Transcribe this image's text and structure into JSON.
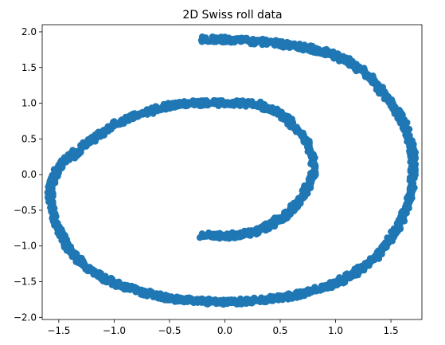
{
  "chart_data": {
    "type": "scatter",
    "title": "2D Swiss roll data",
    "xlabel": "",
    "ylabel": "",
    "xlim": [
      -1.65,
      1.78
    ],
    "ylim": [
      -2.03,
      2.1
    ],
    "xticks": [
      -1.5,
      -1.0,
      -0.5,
      0.0,
      0.5,
      1.0,
      1.5
    ],
    "xtick_labels": [
      "−1.5",
      "−1.0",
      "−0.5",
      "0.0",
      "0.5",
      "1.0",
      "1.5"
    ],
    "yticks": [
      -2.0,
      -1.5,
      -1.0,
      -0.5,
      0.0,
      0.5,
      1.0,
      1.5,
      2.0
    ],
    "ytick_labels": [
      "−2.0",
      "−1.5",
      "−1.0",
      "−0.5",
      "0.0",
      "0.5",
      "1.0",
      "1.5",
      "2.0"
    ],
    "grid": false,
    "legend": "none",
    "marker_color": "#1f77b4",
    "series": [
      {
        "x": [
          -0.2,
          -0.1,
          0.0,
          0.1,
          0.2,
          0.3,
          0.4,
          0.5,
          0.58,
          0.66,
          0.73,
          0.78,
          0.8,
          0.8,
          0.79,
          0.77,
          0.72,
          0.66,
          0.58,
          0.5,
          0.4,
          0.3,
          0.15,
          0.0,
          -0.15,
          -0.3,
          -0.45,
          -0.6,
          -0.75,
          -0.9,
          -1.05,
          -1.2,
          -1.33,
          -1.45,
          -1.54,
          -1.58,
          -1.57,
          -1.55,
          -1.52,
          -1.46,
          -1.38,
          -1.25,
          -1.1,
          -0.95,
          -0.75,
          -0.55,
          -0.35,
          -0.1,
          0.1,
          0.35,
          0.55,
          0.75,
          0.95,
          1.1,
          1.25,
          1.4,
          1.52,
          1.62,
          1.68,
          1.7,
          1.7,
          1.68,
          1.62,
          1.55,
          1.45,
          1.35,
          1.25,
          1.1,
          0.9,
          0.65,
          0.4,
          0.15,
          -0.05,
          -0.15,
          -0.2
        ],
        "y": [
          -0.85,
          -0.85,
          -0.87,
          -0.85,
          -0.82,
          -0.78,
          -0.72,
          -0.62,
          -0.52,
          -0.4,
          -0.22,
          -0.1,
          0.0,
          0.12,
          0.25,
          0.35,
          0.48,
          0.62,
          0.75,
          0.85,
          0.92,
          0.98,
          1.0,
          1.0,
          1.0,
          1.0,
          0.98,
          0.93,
          0.85,
          0.78,
          0.65,
          0.5,
          0.33,
          0.18,
          0.0,
          -0.2,
          -0.4,
          -0.55,
          -0.7,
          -0.9,
          -1.1,
          -1.3,
          -1.45,
          -1.55,
          -1.65,
          -1.72,
          -1.76,
          -1.78,
          -1.78,
          -1.75,
          -1.72,
          -1.65,
          -1.55,
          -1.45,
          -1.3,
          -1.1,
          -0.85,
          -0.55,
          -0.25,
          0.0,
          0.25,
          0.45,
          0.7,
          0.9,
          1.1,
          1.3,
          1.45,
          1.6,
          1.72,
          1.8,
          1.85,
          1.88,
          1.9,
          1.9,
          1.9
        ]
      }
    ]
  }
}
